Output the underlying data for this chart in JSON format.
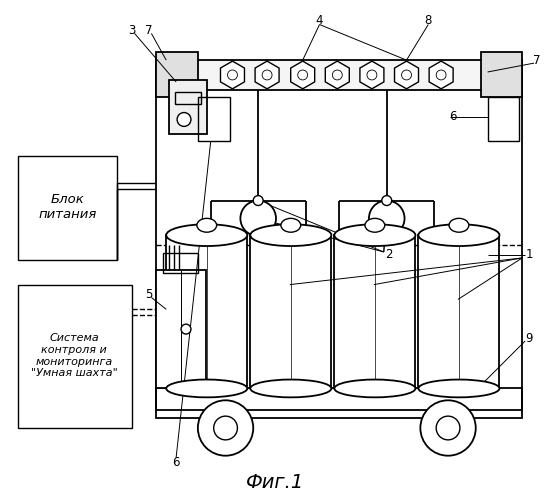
{
  "bg_color": "#ffffff",
  "fig_title": "Фиг.1",
  "blok_pitania_text": "Блок\nпитания",
  "sistema_text": "Система\nконтроля и\nмониторинга\n\"Умная шахта\""
}
